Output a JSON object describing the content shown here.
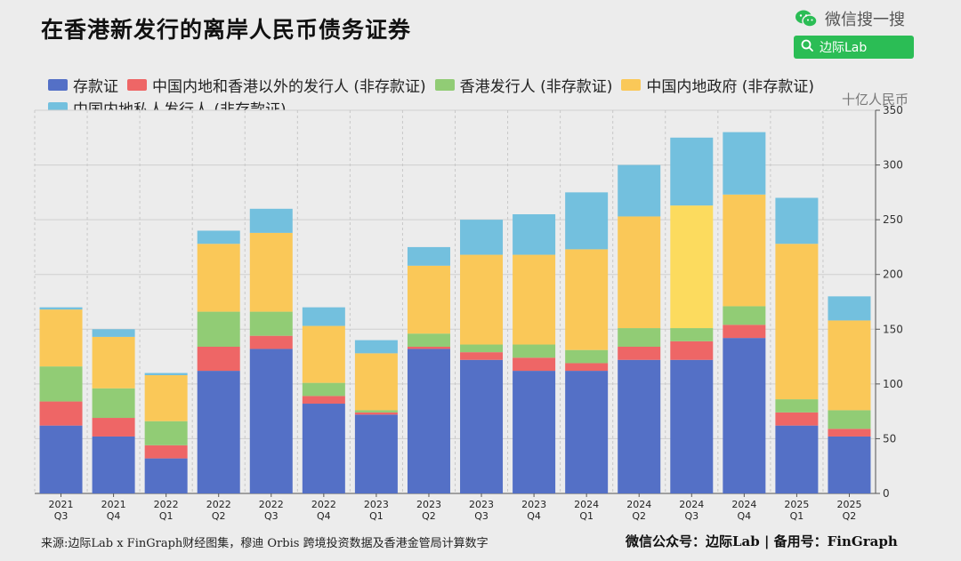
{
  "title": "在香港新发行的离岸人民币债务证券",
  "brand": {
    "name": "微信搜一搜",
    "icon": "wechat-icon",
    "search_icon": "search-icon",
    "search_text": "边际Lab",
    "search_bg": "#2bbd55"
  },
  "unit_label": "十亿人民币",
  "footer": {
    "source": "来源:边际Lab x FinGraph财经图集，穆迪 Orbis 跨境投资数据及香港金管局计算数字",
    "account": "微信公众号：边际Lab  |  备用号：FinGraph"
  },
  "chart_data": {
    "type": "bar",
    "stacked": true,
    "ylim": [
      0,
      350
    ],
    "yticks": [
      0,
      50,
      100,
      150,
      200,
      250,
      300,
      350
    ],
    "grid": true,
    "legend_position": "top",
    "y_axis_side": "right",
    "categories": [
      [
        "2021",
        "Q3"
      ],
      [
        "2021",
        "Q4"
      ],
      [
        "2022",
        "Q1"
      ],
      [
        "2022",
        "Q2"
      ],
      [
        "2022",
        "Q3"
      ],
      [
        "2022",
        "Q4"
      ],
      [
        "2023",
        "Q1"
      ],
      [
        "2023",
        "Q2"
      ],
      [
        "2023",
        "Q3"
      ],
      [
        "2023",
        "Q4"
      ],
      [
        "2024",
        "Q1"
      ],
      [
        "2024",
        "Q2"
      ],
      [
        "2024",
        "Q3"
      ],
      [
        "2024",
        "Q4"
      ],
      [
        "2025",
        "Q1"
      ],
      [
        "2025",
        "Q2"
      ]
    ],
    "series": [
      {
        "name": "存款证",
        "color": "#5470c6",
        "values": [
          62,
          52,
          32,
          112,
          132,
          82,
          72,
          132,
          122,
          112,
          112,
          122,
          122,
          142,
          62,
          52
        ]
      },
      {
        "name": "中国内地和香港以外的发行人 (非存款证)",
        "color": "#ee6666",
        "values": [
          22,
          17,
          12,
          22,
          12,
          7,
          2,
          2,
          7,
          12,
          7,
          12,
          17,
          12,
          12,
          7
        ]
      },
      {
        "name": "香港发行人 (非存款证)",
        "color": "#91cc75",
        "values": [
          32,
          27,
          22,
          32,
          22,
          12,
          2,
          12,
          7,
          12,
          12,
          17,
          12,
          17,
          12,
          17
        ]
      },
      {
        "name": "中国内地政府 (非存款证)",
        "color": "#fac858",
        "values": [
          52,
          47,
          42,
          62,
          72,
          52,
          52,
          62,
          82,
          82,
          92,
          102,
          112,
          102,
          142,
          82
        ]
      },
      {
        "name": "中国内地私人发行人 (非存款证)",
        "color": "#73c0de",
        "values": [
          2,
          7,
          2,
          12,
          22,
          17,
          12,
          17,
          32,
          37,
          52,
          47,
          62,
          57,
          42,
          22
        ]
      }
    ],
    "highlight": {
      "category_index": 12,
      "series_index": 3,
      "color": "#fcdb5e"
    }
  }
}
